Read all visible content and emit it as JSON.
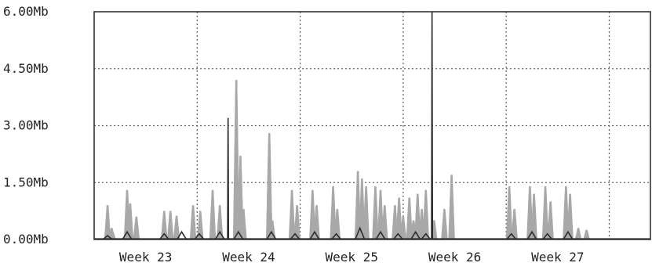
{
  "chart_data": {
    "type": "area",
    "title": "",
    "xlabel": "",
    "ylabel": "",
    "ylim": [
      0,
      6
    ],
    "y_unit": "Mb",
    "y_ticks": [
      "0.00Mb",
      "1.50Mb",
      "3.00Mb",
      "4.50Mb",
      "6.00Mb"
    ],
    "y_tick_values": [
      0,
      1.5,
      3,
      4.5,
      6
    ],
    "x_range": [
      22.5,
      27.9
    ],
    "x_ticks": [
      "Week 23",
      "Week 24",
      "Week 25",
      "Week 26",
      "Week 27"
    ],
    "x_tick_values": [
      23,
      24,
      25,
      26,
      27
    ],
    "grid": true,
    "legend": "none",
    "colors": {
      "incoming": "#a8a8a8",
      "outgoing": "#2b2b2b",
      "grid": "#666666"
    },
    "series": [
      {
        "style": "filled",
        "peaks": [
          [
            22.63,
            0.9
          ],
          [
            22.68,
            0.2
          ],
          [
            22.67,
            0.3
          ],
          [
            22.82,
            1.3
          ],
          [
            22.85,
            0.95
          ],
          [
            22.91,
            0.6
          ],
          [
            23.18,
            0.75
          ],
          [
            23.24,
            0.75
          ],
          [
            23.3,
            0.62
          ],
          [
            23.46,
            0.9
          ],
          [
            23.53,
            0.75
          ],
          [
            23.65,
            1.3
          ],
          [
            23.72,
            0.9
          ],
          [
            23.88,
            4.2
          ],
          [
            23.92,
            2.2
          ],
          [
            23.95,
            0.8
          ],
          [
            24.2,
            2.8
          ],
          [
            24.23,
            0.5
          ],
          [
            24.42,
            1.3
          ],
          [
            24.47,
            0.9
          ],
          [
            24.62,
            1.3
          ],
          [
            24.66,
            0.9
          ],
          [
            24.82,
            1.4
          ],
          [
            24.86,
            0.8
          ],
          [
            25.06,
            1.8
          ],
          [
            25.1,
            1.6
          ],
          [
            25.14,
            1.4
          ],
          [
            25.23,
            1.4
          ],
          [
            25.28,
            1.3
          ],
          [
            25.32,
            0.9
          ],
          [
            25.42,
            0.9
          ],
          [
            25.46,
            1.1
          ],
          [
            25.5,
            0.6
          ],
          [
            25.56,
            1.1
          ],
          [
            25.6,
            0.5
          ],
          [
            25.64,
            1.2
          ],
          [
            25.68,
            0.8
          ],
          [
            25.72,
            1.3
          ],
          [
            25.8,
            0.5
          ],
          [
            25.9,
            0.8
          ],
          [
            25.97,
            1.7
          ],
          [
            26.53,
            1.4
          ],
          [
            26.58,
            0.8
          ],
          [
            26.73,
            1.4
          ],
          [
            26.77,
            1.2
          ],
          [
            26.88,
            1.4
          ],
          [
            26.93,
            1.0
          ],
          [
            27.08,
            1.4
          ],
          [
            27.12,
            1.2
          ],
          [
            27.2,
            0.3
          ],
          [
            27.28,
            0.25
          ]
        ]
      },
      {
        "style": "line",
        "peaks": [
          [
            22.63,
            0.1
          ],
          [
            22.82,
            0.2
          ],
          [
            23.18,
            0.15
          ],
          [
            23.35,
            0.2
          ],
          [
            23.52,
            0.15
          ],
          [
            23.72,
            0.2
          ],
          [
            23.8,
            3.2
          ],
          [
            23.9,
            0.2
          ],
          [
            24.22,
            0.2
          ],
          [
            24.45,
            0.15
          ],
          [
            24.64,
            0.2
          ],
          [
            24.85,
            0.15
          ],
          [
            25.08,
            0.3
          ],
          [
            25.28,
            0.2
          ],
          [
            25.45,
            0.15
          ],
          [
            25.62,
            0.2
          ],
          [
            25.72,
            0.15
          ],
          [
            25.78,
            6.0
          ],
          [
            26.55,
            0.15
          ],
          [
            26.75,
            0.2
          ],
          [
            26.9,
            0.15
          ],
          [
            27.1,
            0.2
          ]
        ]
      }
    ]
  }
}
